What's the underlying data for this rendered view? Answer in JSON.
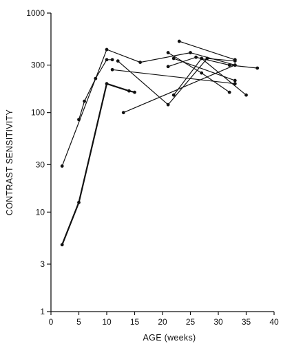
{
  "chart_data": {
    "type": "line",
    "title": "",
    "xlabel": "AGE  (weeks)",
    "ylabel": "CONTRAST SENSITIVITY",
    "x_scale": "linear",
    "y_scale": "log",
    "xlim": [
      0,
      40
    ],
    "ylim": [
      1,
      1000
    ],
    "x_ticks": [
      0,
      5,
      10,
      15,
      20,
      25,
      30,
      35,
      40
    ],
    "y_ticks": [
      1,
      3,
      10,
      30,
      100,
      300,
      1000
    ],
    "grid": false,
    "legend": "none",
    "series": [
      {
        "points": [
          [
            2,
            29
          ],
          [
            10,
            430
          ],
          [
            16,
            320
          ],
          [
            25,
            400
          ],
          [
            33,
            300
          ]
        ]
      },
      {
        "points": [
          [
            2,
            4.7
          ],
          [
            5,
            12.5
          ],
          [
            10,
            195
          ],
          [
            14,
            165
          ],
          [
            15,
            160
          ]
        ]
      },
      {
        "points": [
          [
            5,
            85
          ],
          [
            6,
            130
          ],
          [
            8,
            220
          ],
          [
            10,
            340
          ],
          [
            11,
            340
          ]
        ]
      },
      {
        "points": [
          [
            12,
            330
          ],
          [
            21,
            120
          ],
          [
            28,
            350
          ],
          [
            33,
            330
          ]
        ]
      },
      {
        "points": [
          [
            11,
            270
          ],
          [
            33,
            195
          ]
        ]
      },
      {
        "points": [
          [
            13,
            100
          ],
          [
            33,
            300
          ]
        ]
      },
      {
        "points": [
          [
            21,
            290
          ],
          [
            26,
            360
          ],
          [
            32,
            300
          ],
          [
            37,
            280
          ]
        ]
      },
      {
        "points": [
          [
            23,
            520
          ],
          [
            33,
            340
          ]
        ]
      },
      {
        "points": [
          [
            22,
            150
          ],
          [
            27,
            350
          ],
          [
            35,
            150
          ]
        ]
      },
      {
        "points": [
          [
            21,
            400
          ],
          [
            27,
            250
          ],
          [
            32,
            160
          ]
        ]
      },
      {
        "points": [
          [
            22,
            350
          ],
          [
            33,
            210
          ]
        ]
      }
    ]
  }
}
